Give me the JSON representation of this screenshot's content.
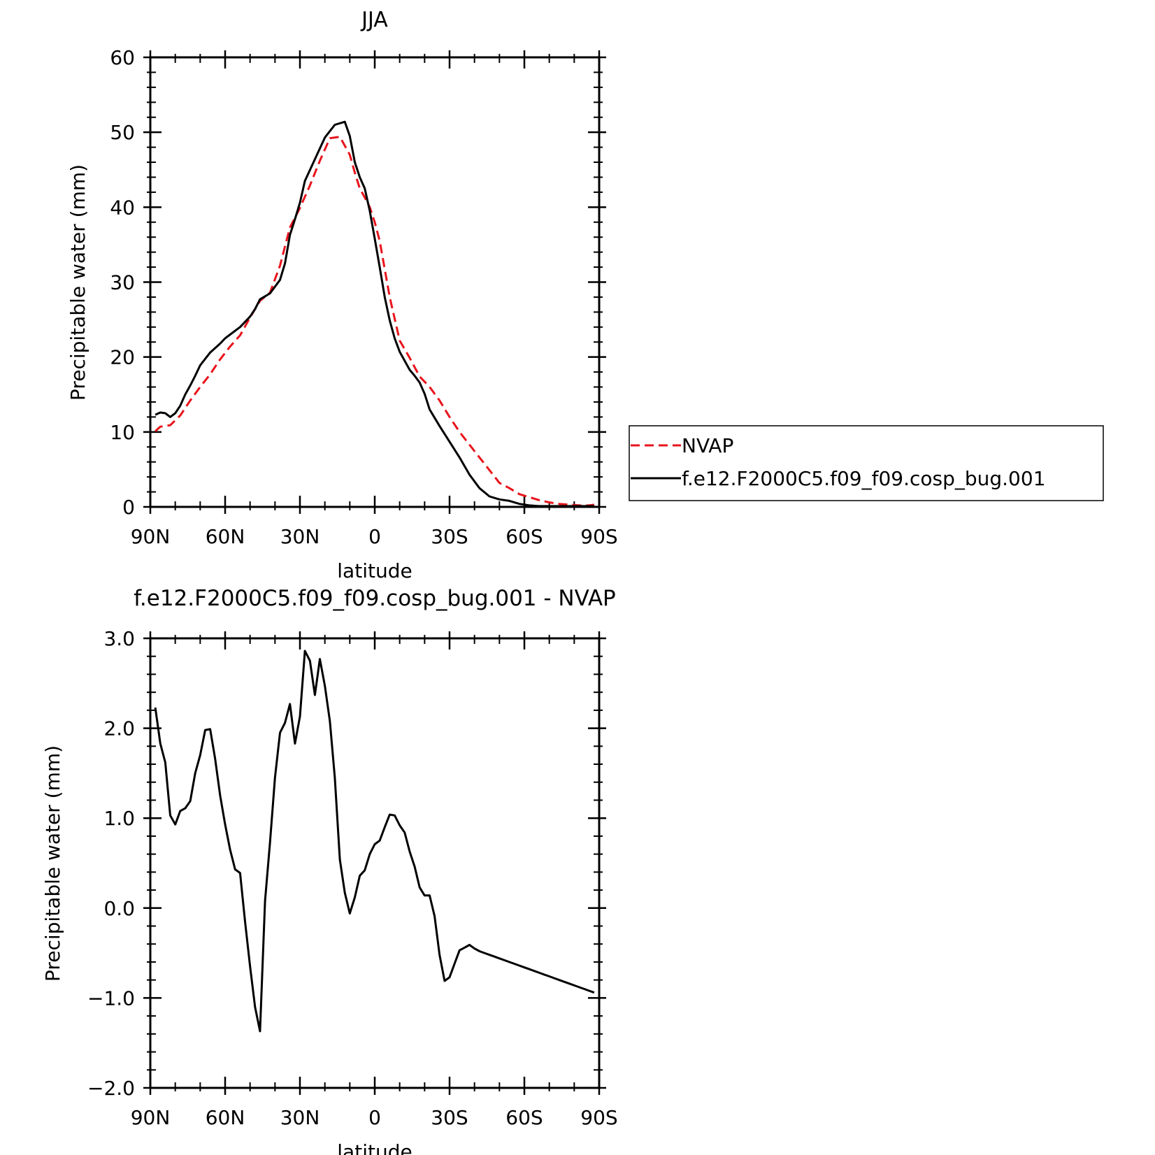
{
  "chart_data": [
    {
      "type": "line",
      "title": "JJA",
      "xlabel": "latitude",
      "ylabel": "Precipitable water (mm)",
      "xlim": [
        90,
        -90
      ],
      "ylim": [
        0,
        60
      ],
      "xticks": [
        90,
        60,
        30,
        0,
        -30,
        -60,
        -90
      ],
      "xtick_labels": [
        "90N",
        "60N",
        "30N",
        "0",
        "30S",
        "60S",
        "90S"
      ],
      "yticks": [
        0,
        10,
        20,
        30,
        40,
        50,
        60
      ],
      "ytick_labels": [
        "0",
        "10",
        "20",
        "30",
        "40",
        "50",
        "60"
      ],
      "legend_position": "right",
      "series": [
        {
          "name": "NVAP",
          "color": "#e8141c",
          "dash": "dashed",
          "x": [
            88,
            86,
            82,
            78,
            74,
            70,
            66,
            62,
            58,
            54,
            50,
            46,
            42,
            38,
            34,
            30,
            26,
            22,
            18,
            14,
            10,
            8,
            6,
            4,
            2,
            0,
            -2,
            -6,
            -10,
            -14,
            -18,
            -22,
            -26,
            -30,
            -34,
            -38,
            -42,
            -46,
            -50,
            -54,
            -58,
            -62,
            -66,
            -70,
            -74,
            -78,
            -82,
            -86,
            -88
          ],
          "y": [
            10.1,
            10.7,
            10.9,
            12.2,
            14.2,
            16.0,
            17.7,
            19.7,
            21.4,
            22.9,
            25.3,
            27.5,
            28.6,
            32.2,
            37.3,
            39.9,
            42.9,
            46.2,
            49.2,
            49.4,
            47.0,
            44.6,
            42.5,
            41.3,
            40.0,
            38.0,
            35.5,
            28.0,
            22.2,
            19.9,
            17.4,
            16.0,
            14.2,
            12.0,
            10.0,
            8.3,
            6.6,
            4.9,
            3.2,
            2.5,
            1.7,
            1.3,
            0.9,
            0.6,
            0.4,
            0.3,
            0.2,
            0.2,
            0.3
          ]
        },
        {
          "name": "f.e12.F2000C5.f09_f09.cosp_bug.001",
          "color": "#000000",
          "dash": "solid",
          "x": [
            88,
            86,
            84,
            82,
            80,
            78,
            76,
            74,
            72,
            70,
            66,
            62,
            60,
            58,
            54,
            50,
            48,
            46,
            42,
            38,
            36,
            34,
            32,
            30,
            28,
            24,
            20,
            16,
            12,
            10,
            8,
            6,
            4,
            2,
            0,
            -2,
            -4,
            -6,
            -8,
            -10,
            -12,
            -14,
            -16,
            -18,
            -20,
            -22,
            -26,
            -30,
            -34,
            -38,
            -42,
            -46,
            -50,
            -54,
            -58,
            -62,
            -66,
            -70,
            -74,
            -78,
            -82,
            -86,
            -88
          ],
          "y": [
            12.3,
            12.6,
            12.5,
            12.0,
            12.5,
            13.5,
            15.0,
            16.2,
            17.5,
            18.9,
            20.6,
            21.8,
            22.5,
            23.0,
            24.0,
            25.4,
            26.4,
            27.7,
            28.5,
            30.3,
            32.5,
            36.3,
            38.4,
            40.6,
            43.5,
            46.4,
            49.3,
            51.0,
            51.4,
            49.5,
            46.0,
            44.0,
            42.5,
            39.5,
            35.8,
            32.0,
            28.0,
            24.9,
            22.5,
            20.7,
            19.5,
            18.3,
            17.5,
            16.6,
            15.1,
            13.0,
            10.8,
            8.7,
            6.6,
            4.3,
            2.5,
            1.4,
            1.0,
            0.8,
            0.4,
            0.2,
            0.1,
            0.1,
            0.1,
            0.1,
            0.1,
            0.1,
            0.1
          ]
        }
      ]
    },
    {
      "type": "line",
      "title": "f.e12.F2000C5.f09_f09.cosp_bug.001 - NVAP",
      "xlabel": "latitude",
      "ylabel": "Precipitable water (mm)",
      "xlim": [
        90,
        -90
      ],
      "ylim": [
        -2.0,
        3.0
      ],
      "xticks": [
        90,
        60,
        30,
        0,
        -30,
        -60,
        -90
      ],
      "xtick_labels": [
        "90N",
        "60N",
        "30N",
        "0",
        "30S",
        "60S",
        "90S"
      ],
      "yticks": [
        -2.0,
        -1.0,
        0.0,
        1.0,
        2.0,
        3.0
      ],
      "ytick_labels": [
        "−2.0",
        "−1.0",
        "0.0",
        "1.0",
        "2.0",
        "3.0"
      ],
      "series": [
        {
          "color": "#000000",
          "dash": "solid",
          "x": [
            88,
            86,
            84,
            82,
            80,
            78,
            76,
            74,
            72,
            70,
            68,
            66,
            64,
            62,
            60,
            58,
            56,
            54,
            52,
            50,
            48,
            46,
            44,
            42,
            40,
            38,
            36,
            34,
            32,
            30,
            28,
            26,
            24,
            22,
            20,
            18,
            16,
            14,
            12,
            10,
            8,
            6,
            4,
            2,
            0,
            -2,
            -4,
            -6,
            -8,
            -10,
            -12,
            -14,
            -16,
            -18,
            -20,
            -22,
            -24,
            -26,
            -28,
            -30,
            -32,
            -34,
            -36,
            -38,
            -40,
            -42,
            -44,
            -46,
            -48,
            -50,
            -52,
            -54,
            -56,
            -58,
            -60,
            -62,
            -64,
            -66,
            -68,
            -70,
            -72,
            -74,
            -76,
            -78,
            -80,
            -82,
            -84,
            -86,
            -88
          ],
          "y": [
            2.23,
            1.83,
            1.62,
            1.03,
            0.93,
            1.08,
            1.11,
            1.19,
            1.5,
            1.7,
            1.98,
            1.99,
            1.66,
            1.25,
            0.93,
            0.65,
            0.43,
            0.39,
            -0.15,
            -0.65,
            -1.1,
            -1.37,
            0.08,
            0.73,
            1.45,
            1.95,
            2.06,
            2.27,
            1.83,
            2.13,
            2.86,
            2.75,
            2.37,
            2.77,
            2.47,
            2.08,
            1.45,
            0.54,
            0.17,
            -0.06,
            0.12,
            0.36,
            0.42,
            0.6,
            0.71,
            0.75,
            0.9,
            1.04,
            1.03,
            0.92,
            0.84,
            0.63,
            0.46,
            0.23,
            0.14,
            0.14,
            -0.09,
            -0.52,
            -0.81,
            -0.77,
            -0.62,
            -0.47,
            -0.44,
            -0.41,
            -0.45,
            -0.48,
            -0.5,
            -0.52,
            -0.54,
            -0.56,
            -0.58,
            -0.6,
            -0.62,
            -0.64,
            -0.66,
            -0.68,
            -0.7,
            -0.72,
            -0.74,
            -0.76,
            -0.78,
            -0.8,
            -0.82,
            -0.84,
            -0.86,
            -0.88,
            -0.9,
            -0.92,
            -0.94
          ]
        }
      ]
    }
  ]
}
